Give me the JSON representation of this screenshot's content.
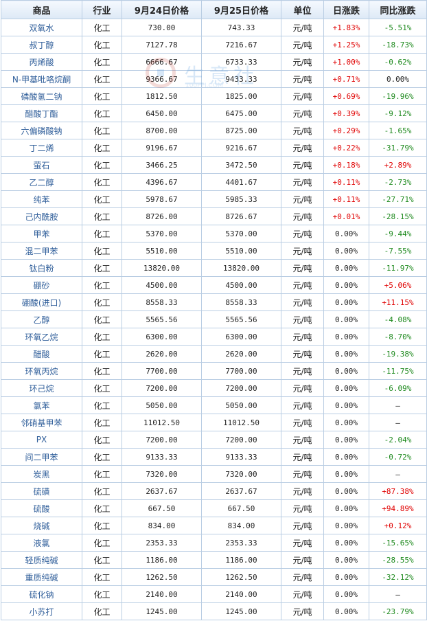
{
  "watermark": {
    "text": "生意社",
    "sub": "100PPI.COM"
  },
  "headers": [
    "商品",
    "行业",
    "9月24日价格",
    "9月25日价格",
    "单位",
    "日涨跌",
    "同比涨跌"
  ],
  "rows": [
    [
      "双氧水",
      "化工",
      "730.00",
      "743.33",
      "元/吨",
      "+1.83%",
      "-5.51%"
    ],
    [
      "叔丁醇",
      "化工",
      "7127.78",
      "7216.67",
      "元/吨",
      "+1.25%",
      "-18.73%"
    ],
    [
      "丙烯酸",
      "化工",
      "6666.67",
      "6733.33",
      "元/吨",
      "+1.00%",
      "-0.62%"
    ],
    [
      "N-甲基吡咯烷酮",
      "化工",
      "9366.67",
      "9433.33",
      "元/吨",
      "+0.71%",
      "0.00%"
    ],
    [
      "磷酸氢二钠",
      "化工",
      "1812.50",
      "1825.00",
      "元/吨",
      "+0.69%",
      "-19.96%"
    ],
    [
      "醋酸丁酯",
      "化工",
      "6450.00",
      "6475.00",
      "元/吨",
      "+0.39%",
      "-9.12%"
    ],
    [
      "六偏磷酸钠",
      "化工",
      "8700.00",
      "8725.00",
      "元/吨",
      "+0.29%",
      "-1.65%"
    ],
    [
      "丁二烯",
      "化工",
      "9196.67",
      "9216.67",
      "元/吨",
      "+0.22%",
      "-31.79%"
    ],
    [
      "萤石",
      "化工",
      "3466.25",
      "3472.50",
      "元/吨",
      "+0.18%",
      "+2.89%"
    ],
    [
      "乙二醇",
      "化工",
      "4396.67",
      "4401.67",
      "元/吨",
      "+0.11%",
      "-2.73%"
    ],
    [
      "纯苯",
      "化工",
      "5978.67",
      "5985.33",
      "元/吨",
      "+0.11%",
      "-27.71%"
    ],
    [
      "己内酰胺",
      "化工",
      "8726.00",
      "8726.67",
      "元/吨",
      "+0.01%",
      "-28.15%"
    ],
    [
      "甲苯",
      "化工",
      "5370.00",
      "5370.00",
      "元/吨",
      "0.00%",
      "-9.44%"
    ],
    [
      "混二甲苯",
      "化工",
      "5510.00",
      "5510.00",
      "元/吨",
      "0.00%",
      "-7.55%"
    ],
    [
      "钛白粉",
      "化工",
      "13820.00",
      "13820.00",
      "元/吨",
      "0.00%",
      "-11.97%"
    ],
    [
      "硼砂",
      "化工",
      "4500.00",
      "4500.00",
      "元/吨",
      "0.00%",
      "+5.06%"
    ],
    [
      "硼酸(进口)",
      "化工",
      "8558.33",
      "8558.33",
      "元/吨",
      "0.00%",
      "+11.15%"
    ],
    [
      "乙醇",
      "化工",
      "5565.56",
      "5565.56",
      "元/吨",
      "0.00%",
      "-4.08%"
    ],
    [
      "环氧乙烷",
      "化工",
      "6300.00",
      "6300.00",
      "元/吨",
      "0.00%",
      "-8.70%"
    ],
    [
      "醋酸",
      "化工",
      "2620.00",
      "2620.00",
      "元/吨",
      "0.00%",
      "-19.38%"
    ],
    [
      "环氧丙烷",
      "化工",
      "7700.00",
      "7700.00",
      "元/吨",
      "0.00%",
      "-11.75%"
    ],
    [
      "环己烷",
      "化工",
      "7200.00",
      "7200.00",
      "元/吨",
      "0.00%",
      "-6.09%"
    ],
    [
      "氯苯",
      "化工",
      "5050.00",
      "5050.00",
      "元/吨",
      "0.00%",
      "—"
    ],
    [
      "邻硝基甲苯",
      "化工",
      "11012.50",
      "11012.50",
      "元/吨",
      "0.00%",
      "—"
    ],
    [
      "PX",
      "化工",
      "7200.00",
      "7200.00",
      "元/吨",
      "0.00%",
      "-2.04%"
    ],
    [
      "间二甲苯",
      "化工",
      "9133.33",
      "9133.33",
      "元/吨",
      "0.00%",
      "-0.72%"
    ],
    [
      "炭黑",
      "化工",
      "7320.00",
      "7320.00",
      "元/吨",
      "0.00%",
      "—"
    ],
    [
      "硫磺",
      "化工",
      "2637.67",
      "2637.67",
      "元/吨",
      "0.00%",
      "+87.38%"
    ],
    [
      "硫酸",
      "化工",
      "667.50",
      "667.50",
      "元/吨",
      "0.00%",
      "+94.89%"
    ],
    [
      "烧碱",
      "化工",
      "834.00",
      "834.00",
      "元/吨",
      "0.00%",
      "+0.12%"
    ],
    [
      "液氯",
      "化工",
      "2353.33",
      "2353.33",
      "元/吨",
      "0.00%",
      "-15.65%"
    ],
    [
      "轻质纯碱",
      "化工",
      "1186.00",
      "1186.00",
      "元/吨",
      "0.00%",
      "-28.55%"
    ],
    [
      "重质纯碱",
      "化工",
      "1262.50",
      "1262.50",
      "元/吨",
      "0.00%",
      "-32.12%"
    ],
    [
      "硫化钠",
      "化工",
      "2140.00",
      "2140.00",
      "元/吨",
      "0.00%",
      "—"
    ],
    [
      "小苏打",
      "化工",
      "1245.00",
      "1245.00",
      "元/吨",
      "0.00%",
      "-23.79%"
    ]
  ],
  "colors": {
    "up": "#e00000",
    "down": "#1f8a1f",
    "name": "#2f5e9a",
    "border": "#b9cde3"
  }
}
